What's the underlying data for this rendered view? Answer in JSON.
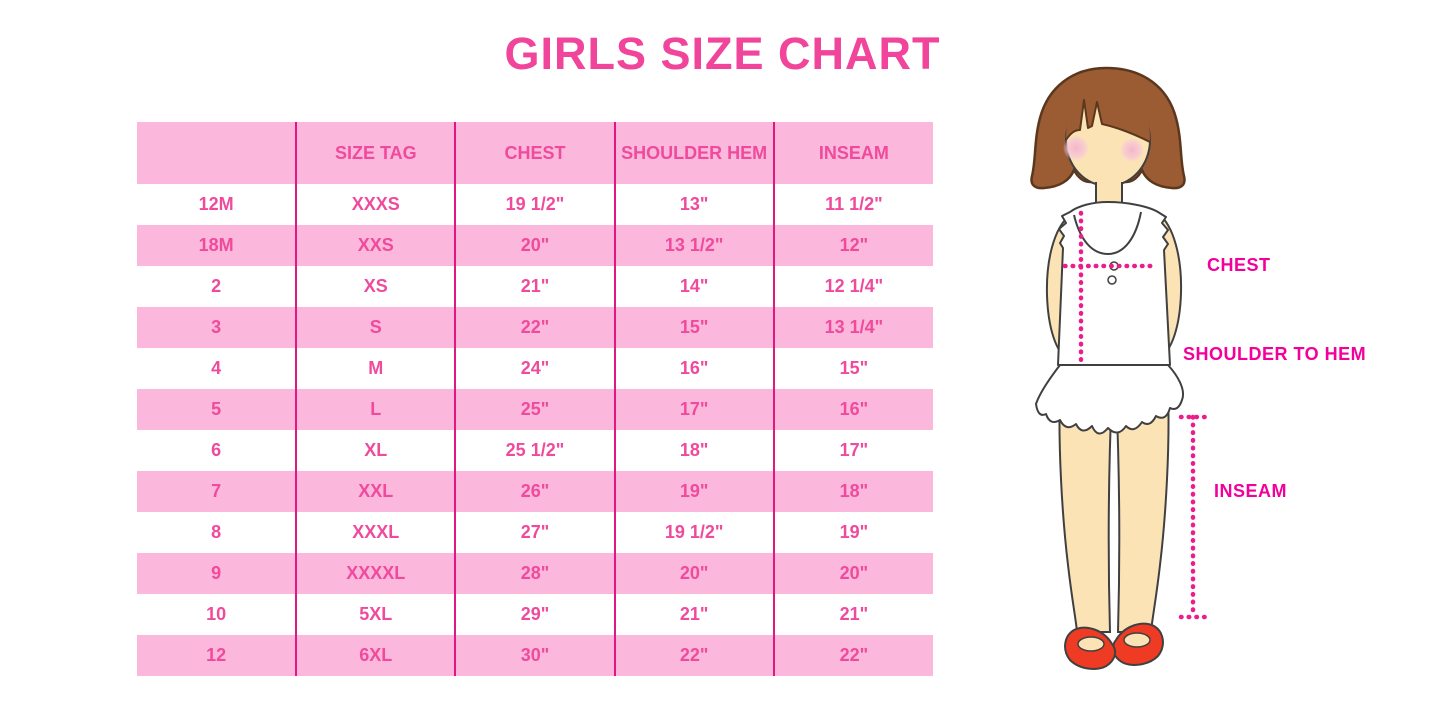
{
  "title": "GIRLS SIZE CHART",
  "colors": {
    "title_pink": "#F0459B",
    "table_text_pink": "#EF4A9C",
    "row_fill_pink": "#FBB8DC",
    "column_line_magenta": "#E0187F",
    "label_magenta": "#F3009B",
    "dotted_line_magenta": "#EC1C8D",
    "hair_brown": "#9B5B33",
    "skin": "#FBE3B6",
    "shoe_red": "#EF3B24"
  },
  "table": {
    "headers": [
      "",
      "SIZE TAG",
      "CHEST",
      "SHOULDER HEM",
      "INSEAM"
    ],
    "rows": [
      [
        "12M",
        "XXXS",
        "19 1/2\"",
        "13\"",
        "11 1/2\""
      ],
      [
        "18M",
        "XXS",
        "20\"",
        "13 1/2\"",
        "12\""
      ],
      [
        "2",
        "XS",
        "21\"",
        "14\"",
        "12 1/4\""
      ],
      [
        "3",
        "S",
        "22\"",
        "15\"",
        "13 1/4\""
      ],
      [
        "4",
        "M",
        "24\"",
        "16\"",
        "15\""
      ],
      [
        "5",
        "L",
        "25\"",
        "17\"",
        "16\""
      ],
      [
        "6",
        "XL",
        "25 1/2\"",
        "18\"",
        "17\""
      ],
      [
        "7",
        "XXL",
        "26\"",
        "19\"",
        "18\""
      ],
      [
        "8",
        "XXXL",
        "27\"",
        "19 1/2\"",
        "19\""
      ],
      [
        "9",
        "XXXXL",
        "28\"",
        "20\"",
        "20\""
      ],
      [
        "10",
        "5XL",
        "29\"",
        "21\"",
        "21\""
      ],
      [
        "12",
        "6XL",
        "30\"",
        "22\"",
        "22\""
      ]
    ]
  },
  "diagram": {
    "labels": {
      "chest": "CHEST",
      "shoulder_to_hem": "SHOULDER TO HEM",
      "inseam": "INSEAM"
    }
  }
}
